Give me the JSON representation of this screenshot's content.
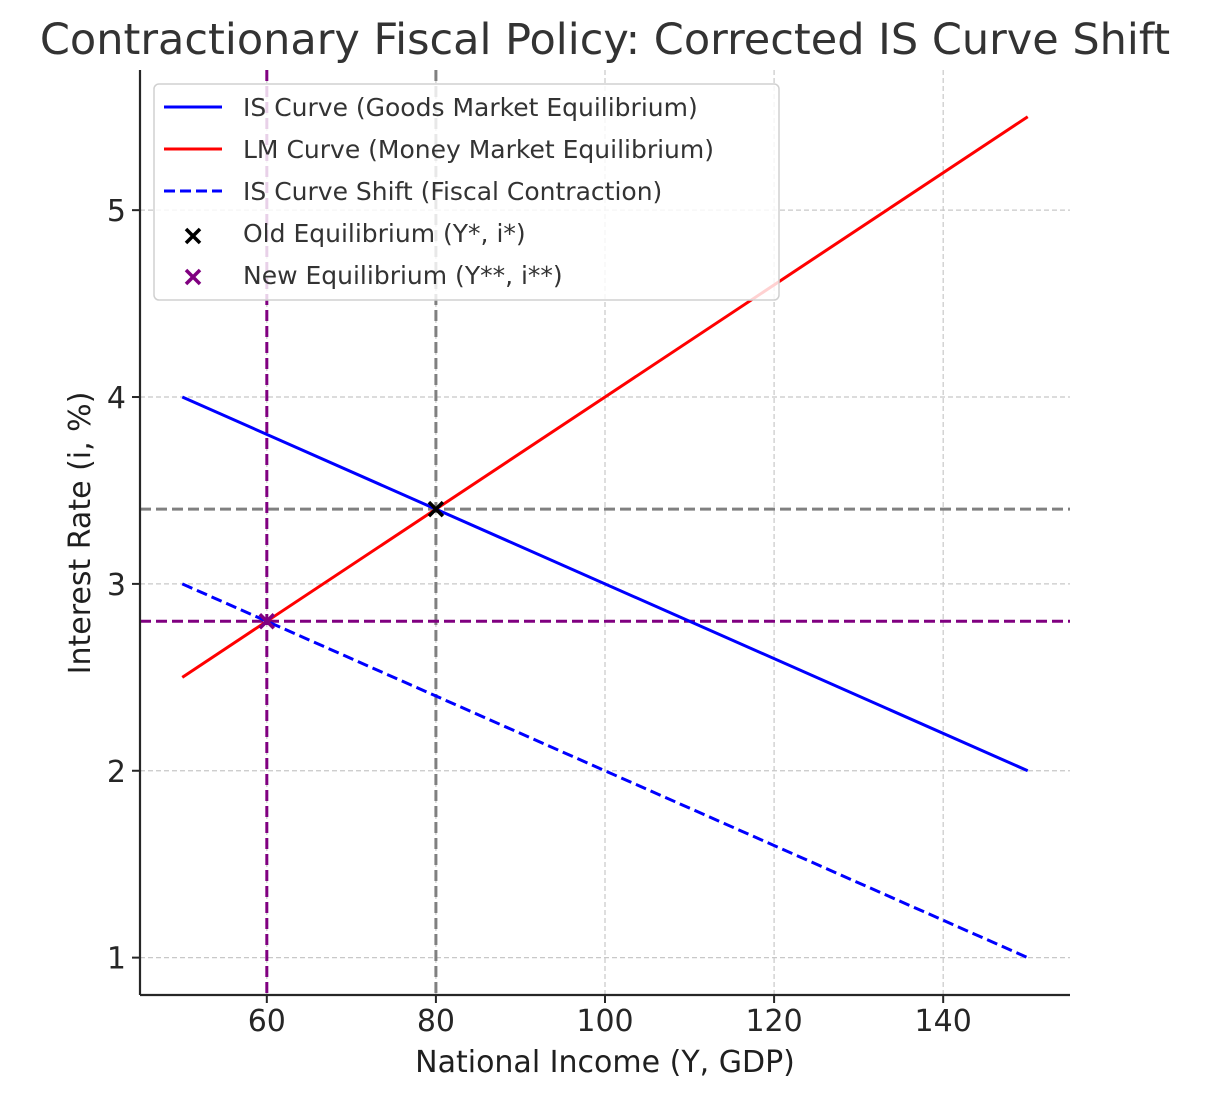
{
  "chart_data": {
    "type": "line",
    "title": "Contractionary Fiscal Policy: Corrected IS Curve Shift",
    "xlabel": "National Income (Y, GDP)",
    "ylabel": "Interest Rate (i, %)",
    "xlim": [
      45,
      155
    ],
    "ylim": [
      0.8,
      5.75
    ],
    "xticks": [
      60,
      80,
      100,
      120,
      140
    ],
    "yticks": [
      1,
      2,
      3,
      4,
      5
    ],
    "x_tick_labels": [
      "60",
      "80",
      "100",
      "120",
      "140"
    ],
    "y_tick_labels": [
      "1",
      "2",
      "3",
      "4",
      "5"
    ],
    "grid": true,
    "legend_position": "top-left",
    "series": [
      {
        "name": "IS Curve (Goods Market Equilibrium)",
        "style": "solid",
        "color": "#0000ff",
        "x": [
          50,
          150
        ],
        "y": [
          4.0,
          2.0
        ]
      },
      {
        "name": "LM Curve (Money Market Equilibrium)",
        "style": "solid",
        "color": "#ff0000",
        "x": [
          50,
          150
        ],
        "y": [
          2.5,
          5.5
        ]
      },
      {
        "name": "IS Curve Shift (Fiscal Contraction)",
        "style": "dashed",
        "color": "#0000ff",
        "x": [
          50,
          150
        ],
        "y": [
          3.0,
          1.0
        ]
      }
    ],
    "points": [
      {
        "name": "Old Equilibrium (Y*, i*)",
        "x": 80,
        "y": 3.4,
        "marker": "x",
        "color": "#000000"
      },
      {
        "name": "New Equilibrium (Y**, i**)",
        "x": 60,
        "y": 2.8,
        "marker": "x",
        "color": "#800080"
      }
    ],
    "reference_lines": [
      {
        "orientation": "vertical",
        "value": 80,
        "color": "#808080",
        "style": "dashed"
      },
      {
        "orientation": "horizontal",
        "value": 3.4,
        "color": "#808080",
        "style": "dashed"
      },
      {
        "orientation": "vertical",
        "value": 60,
        "color": "#800080",
        "style": "dashed"
      },
      {
        "orientation": "horizontal",
        "value": 2.8,
        "color": "#800080",
        "style": "dashed"
      }
    ]
  }
}
